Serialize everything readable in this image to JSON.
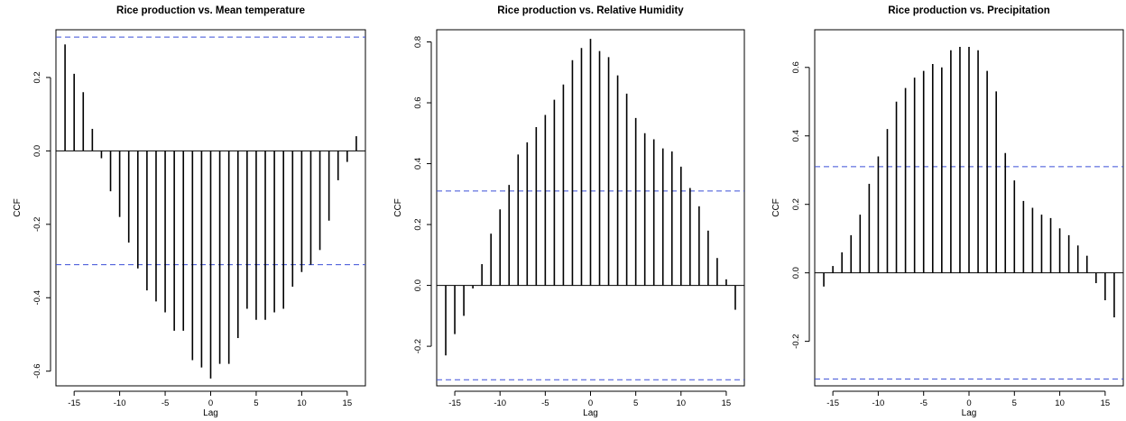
{
  "chart_data": [
    {
      "type": "bar",
      "subtype": "ccf-lollipop",
      "title": "Rice production vs. Mean temperature",
      "xlabel": "Lag",
      "ylabel": "CCF",
      "xlim": [
        -17,
        17
      ],
      "ylim": [
        -0.64,
        0.33
      ],
      "xticks": [
        -15,
        -10,
        -5,
        0,
        5,
        10,
        15
      ],
      "yticks": [
        -0.6,
        -0.4,
        -0.2,
        0.0,
        0.2
      ],
      "ytick_labels": [
        "-0.6",
        "-0.4",
        "-0.2",
        "0.0",
        "0.2"
      ],
      "ci": 0.31,
      "ci_color": "#3b4fd8",
      "x": [
        -16,
        -15,
        -14,
        -13,
        -12,
        -11,
        -10,
        -9,
        -8,
        -7,
        -6,
        -5,
        -4,
        -3,
        -2,
        -1,
        0,
        1,
        2,
        3,
        4,
        5,
        6,
        7,
        8,
        9,
        10,
        11,
        12,
        13,
        14,
        15,
        16
      ],
      "values": [
        0.29,
        0.21,
        0.16,
        0.06,
        -0.02,
        -0.11,
        -0.18,
        -0.25,
        -0.32,
        -0.38,
        -0.41,
        -0.44,
        -0.49,
        -0.49,
        -0.57,
        -0.59,
        -0.62,
        -0.58,
        -0.58,
        -0.51,
        -0.43,
        -0.46,
        -0.46,
        -0.44,
        -0.43,
        -0.37,
        -0.33,
        -0.31,
        -0.27,
        -0.19,
        -0.08,
        -0.03,
        0.04
      ]
    },
    {
      "type": "bar",
      "subtype": "ccf-lollipop",
      "title": "Rice production vs. Relative Humidity",
      "xlabel": "Lag",
      "ylabel": "CCF",
      "xlim": [
        -17,
        17
      ],
      "ylim": [
        -0.33,
        0.84
      ],
      "xticks": [
        -15,
        -10,
        -5,
        0,
        5,
        10,
        15
      ],
      "yticks": [
        -0.2,
        0.0,
        0.2,
        0.4,
        0.6,
        0.8
      ],
      "ytick_labels": [
        "-0.2",
        "0.0",
        "0.2",
        "0.4",
        "0.6",
        "0.8"
      ],
      "ci": 0.31,
      "ci_color": "#3b4fd8",
      "x": [
        -16,
        -15,
        -14,
        -13,
        -12,
        -11,
        -10,
        -9,
        -8,
        -7,
        -6,
        -5,
        -4,
        -3,
        -2,
        -1,
        0,
        1,
        2,
        3,
        4,
        5,
        6,
        7,
        8,
        9,
        10,
        11,
        12,
        13,
        14,
        15,
        16
      ],
      "values": [
        -0.23,
        -0.16,
        -0.1,
        -0.01,
        0.07,
        0.17,
        0.25,
        0.33,
        0.43,
        0.47,
        0.52,
        0.56,
        0.61,
        0.66,
        0.74,
        0.78,
        0.81,
        0.77,
        0.75,
        0.69,
        0.63,
        0.55,
        0.5,
        0.48,
        0.45,
        0.44,
        0.39,
        0.32,
        0.26,
        0.18,
        0.09,
        0.02,
        -0.08
      ]
    },
    {
      "type": "bar",
      "subtype": "ccf-lollipop",
      "title": "Rice production vs. Precipitation",
      "xlabel": "Lag",
      "ylabel": "CCF",
      "xlim": [
        -17,
        17
      ],
      "ylim": [
        -0.33,
        0.71
      ],
      "xticks": [
        -15,
        -10,
        -5,
        0,
        5,
        10,
        15
      ],
      "yticks": [
        -0.2,
        0.0,
        0.2,
        0.4,
        0.6
      ],
      "ytick_labels": [
        "-0.2",
        "0.0",
        "0.2",
        "0.4",
        "0.6"
      ],
      "ci": 0.31,
      "ci_color": "#3b4fd8",
      "x": [
        -16,
        -15,
        -14,
        -13,
        -12,
        -11,
        -10,
        -9,
        -8,
        -7,
        -6,
        -5,
        -4,
        -3,
        -2,
        -1,
        0,
        1,
        2,
        3,
        4,
        5,
        6,
        7,
        8,
        9,
        10,
        11,
        12,
        13,
        14,
        15,
        16
      ],
      "values": [
        -0.04,
        0.02,
        0.06,
        0.11,
        0.17,
        0.26,
        0.34,
        0.42,
        0.5,
        0.54,
        0.57,
        0.59,
        0.61,
        0.6,
        0.65,
        0.66,
        0.66,
        0.65,
        0.59,
        0.53,
        0.35,
        0.27,
        0.21,
        0.19,
        0.17,
        0.16,
        0.13,
        0.11,
        0.08,
        0.05,
        -0.03,
        -0.08,
        -0.13
      ]
    }
  ]
}
